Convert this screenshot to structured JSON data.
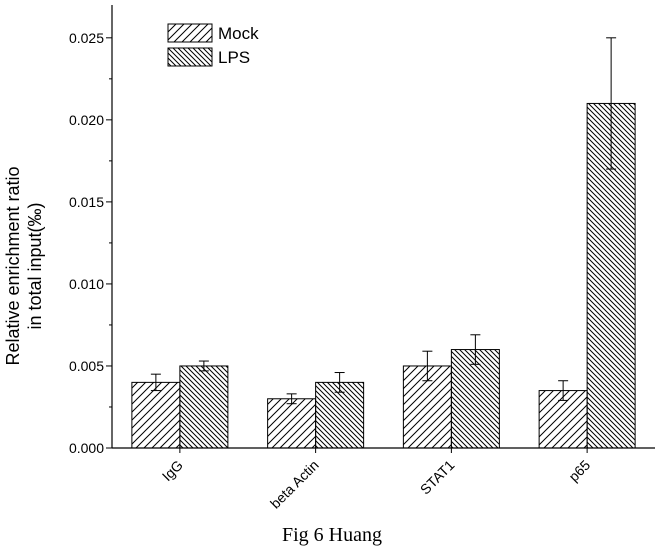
{
  "chart_data": {
    "type": "bar",
    "categories": [
      "IgG",
      "beta Actin",
      "STAT1",
      "p65"
    ],
    "series": [
      {
        "name": "Mock",
        "values": [
          0.004,
          0.003,
          0.005,
          0.0035
        ],
        "errors": [
          0.0005,
          0.0003,
          0.0009,
          0.0006
        ],
        "hatch": "forward"
      },
      {
        "name": "LPS",
        "values": [
          0.005,
          0.004,
          0.006,
          0.021
        ],
        "errors": [
          0.0003,
          0.0006,
          0.0009,
          0.004
        ],
        "hatch": "backward"
      }
    ],
    "ylabel_lines": [
      "Relative enrichment ratio",
      "in total input(‰)"
    ],
    "ylim": [
      0,
      0.027
    ],
    "yticks": [
      "0.000",
      "0.005",
      "0.010",
      "0.015",
      "0.020",
      "0.025"
    ],
    "ytick_values": [
      0,
      0.005,
      0.01,
      0.015,
      0.02,
      0.025
    ],
    "legend_position": "top-left",
    "grid": false
  },
  "caption": "Fig 6 Huang"
}
